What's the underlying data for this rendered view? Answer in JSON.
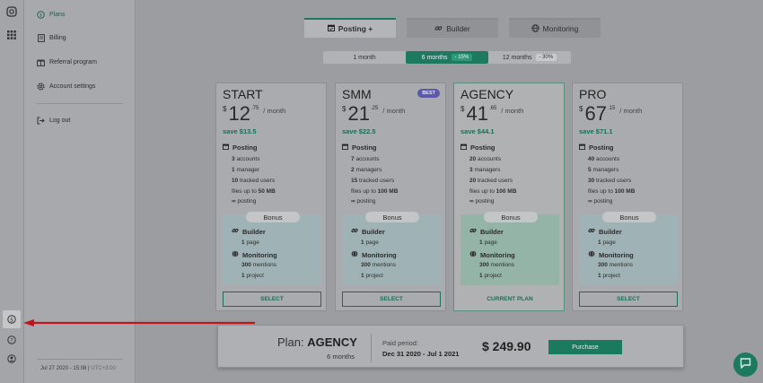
{
  "rail": {
    "icons": [
      "instagram-icon",
      "apps-grid-icon",
      "dollar-circle-icon",
      "help-icon",
      "user-icon"
    ]
  },
  "sidebar": {
    "items": [
      {
        "label": "Plans",
        "icon": "dollar-circle-icon",
        "active": true
      },
      {
        "label": "Billing",
        "icon": "document-icon"
      },
      {
        "label": "Referral program",
        "icon": "gift-icon"
      },
      {
        "label": "Account settings",
        "icon": "gear-icon"
      },
      {
        "label": "Log out",
        "icon": "logout-icon"
      }
    ],
    "footer_date": "Jul 27 2020 - 15:08",
    "footer_tz": "UTC+3:00"
  },
  "tabs": [
    {
      "label": "Posting +",
      "icon": "calendar-icon",
      "active": true
    },
    {
      "label": "Builder",
      "icon": "link-icon"
    },
    {
      "label": "Monitoring",
      "icon": "globe-icon"
    }
  ],
  "periods": [
    {
      "label": "1 month",
      "discount": ""
    },
    {
      "label": "6 months",
      "discount": "- 15%",
      "active": true
    },
    {
      "label": "12 months",
      "discount": "- 30%"
    }
  ],
  "labels": {
    "per_month": "/ month",
    "currency": "$",
    "posting": "Posting",
    "bonus": "Bonus",
    "builder": "Builder",
    "monitoring": "Monitoring",
    "accounts": "accounts",
    "managers_one": "manager",
    "managers": "managers",
    "tracked_users": "tracked users",
    "files_up_to": "files up to",
    "posting_inf": "posting",
    "page": "page",
    "mentions": "mentions",
    "project": "project",
    "select": "SELECT",
    "current_plan": "CURRENT PLAN",
    "best": "BEST"
  },
  "plans": [
    {
      "name": "START",
      "int": "12",
      "dec": ".75",
      "save": "save $13.5",
      "accounts": "3",
      "managers": "1",
      "managers_label": "manager",
      "tracked": "10",
      "files": "50 MB",
      "pages": "1",
      "mentions": "300",
      "projects": "1",
      "button": "SELECT"
    },
    {
      "name": "SMM",
      "int": "21",
      "dec": ".25",
      "save": "save $22.5",
      "accounts": "7",
      "managers": "2",
      "managers_label": "managers",
      "tracked": "15",
      "files": "100 MB",
      "pages": "1",
      "mentions": "300",
      "projects": "1",
      "button": "SELECT",
      "badge": "BEST"
    },
    {
      "name": "AGENCY",
      "int": "41",
      "dec": ".65",
      "save": "save $44.1",
      "accounts": "20",
      "managers": "3",
      "managers_label": "managers",
      "tracked": "20",
      "files": "100 MB",
      "pages": "1",
      "mentions": "300",
      "projects": "1",
      "button": "CURRENT PLAN",
      "current": true
    },
    {
      "name": "PRO",
      "int": "67",
      "dec": ".15",
      "save": "save $71.1",
      "accounts": "40",
      "managers": "5",
      "managers_label": "managers",
      "tracked": "30",
      "files": "100 MB",
      "pages": "1",
      "mentions": "300",
      "projects": "1",
      "button": "SELECT"
    }
  ],
  "summary": {
    "plan_label": "Plan:",
    "plan_name": "AGENCY",
    "duration": "6 months",
    "paid_period_label": "Paid period:",
    "paid_period": "Dec 31 2020 - Jul 1 2021",
    "total": "$ 249.90",
    "purchase": "Purchase"
  },
  "colors": {
    "accent": "#1a7a5e",
    "arrow": "#c0141a",
    "best_badge": "#5d59a8"
  }
}
